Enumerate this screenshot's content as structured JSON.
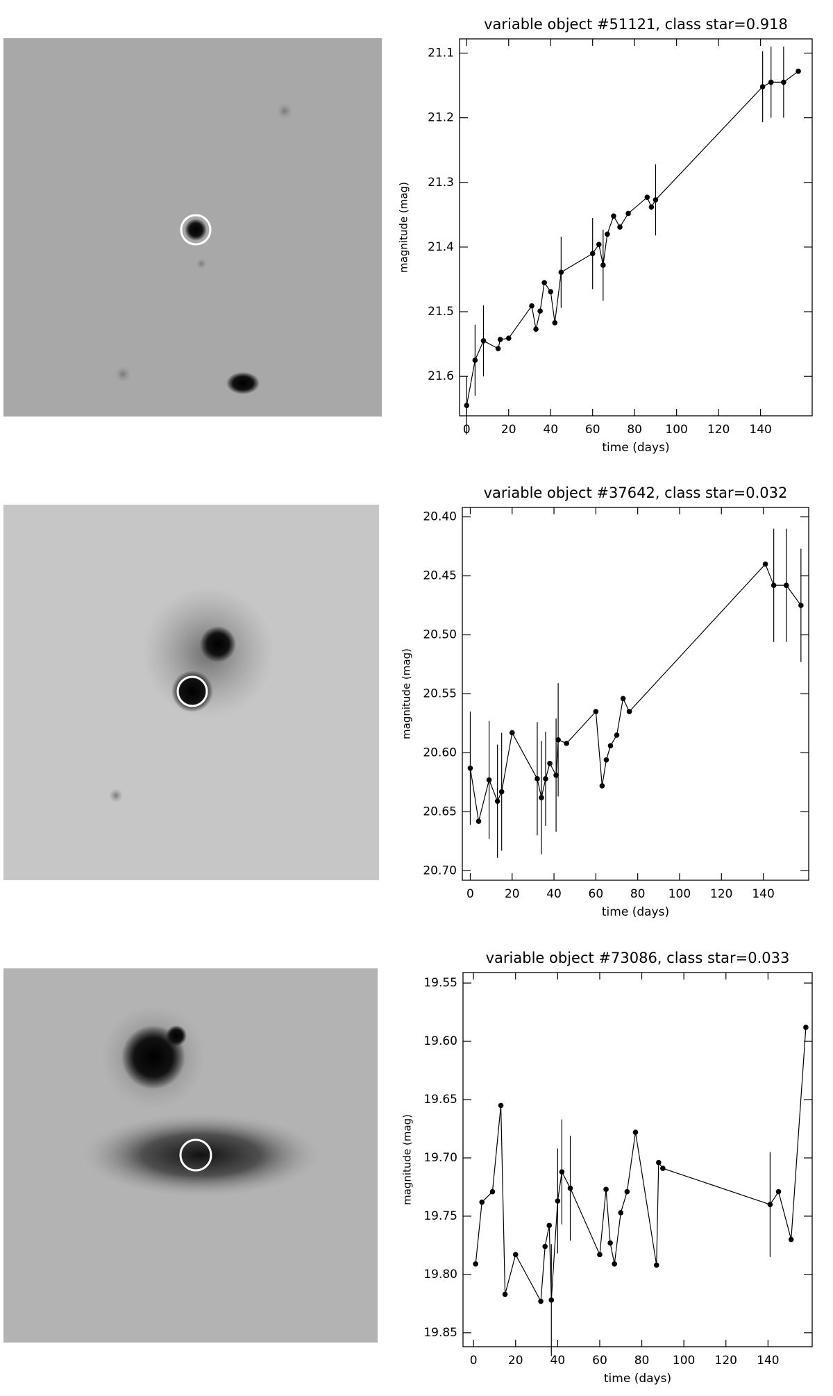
{
  "chart_data": [
    {
      "type": "line",
      "title": "variable object #51121, class star=0.918",
      "x_label": "time (days)",
      "y_label": "magnitude (mag)",
      "color": "#000000",
      "xlim": [
        -3.4,
        164.6
      ],
      "ylim": [
        21.661,
        21.078
      ],
      "xticks": [
        0,
        20,
        40,
        60,
        80,
        100,
        120,
        140
      ],
      "yticks": [
        21.1,
        21.2,
        21.3,
        21.4,
        21.5,
        21.6
      ],
      "x": [
        0,
        4,
        8,
        15,
        16,
        20,
        31,
        33,
        35,
        37,
        40,
        42,
        45,
        60,
        63,
        65,
        67,
        70,
        73,
        77,
        86,
        88,
        90,
        141,
        145,
        151,
        158
      ],
      "values": [
        21.645,
        21.575,
        21.545,
        21.557,
        21.543,
        21.541,
        21.491,
        21.527,
        21.499,
        21.455,
        21.469,
        21.517,
        21.439,
        21.41,
        21.396,
        21.428,
        21.38,
        21.352,
        21.369,
        21.348,
        21.323,
        21.338,
        21.327,
        21.152,
        21.145,
        21.145,
        21.128
      ],
      "errors": [
        0.045,
        0.055,
        0.055,
        null,
        null,
        null,
        null,
        null,
        null,
        null,
        null,
        null,
        0.055,
        0.055,
        null,
        0.055,
        null,
        null,
        null,
        null,
        null,
        null,
        0.055,
        0.055,
        0.055,
        0.055,
        null
      ]
    },
    {
      "type": "line",
      "title": "variable object #37642, class star=0.032",
      "x_label": "time (days)",
      "y_label": "magnitude (mag)",
      "color": "#000000",
      "xlim": [
        -3.8,
        161.7
      ],
      "ylim": [
        20.708,
        20.392
      ],
      "xticks": [
        0,
        20,
        40,
        60,
        80,
        100,
        120,
        140
      ],
      "yticks": [
        {
          "value": 20.4,
          "label": "20.40"
        },
        20.45,
        {
          "value": 20.5,
          "label": "20.50"
        },
        20.55,
        {
          "value": 20.6,
          "label": "20.60"
        },
        20.65,
        {
          "value": 20.7,
          "label": "20.70"
        }
      ],
      "x": [
        0,
        4,
        9,
        13,
        15,
        20,
        32,
        34,
        36,
        38,
        41,
        42,
        46,
        60,
        63,
        65,
        67,
        70,
        73,
        76,
        141,
        145,
        151,
        158
      ],
      "values": [
        20.613,
        20.658,
        20.623,
        20.641,
        20.633,
        20.583,
        20.622,
        20.638,
        20.622,
        20.609,
        20.619,
        20.589,
        20.592,
        20.565,
        20.628,
        20.606,
        20.594,
        20.585,
        20.554,
        20.565,
        20.44,
        20.458,
        20.458,
        20.475
      ],
      "errors": [
        0.048,
        null,
        0.05,
        0.048,
        0.05,
        null,
        0.048,
        0.048,
        0.04,
        null,
        0.048,
        0.048,
        null,
        null,
        null,
        null,
        null,
        null,
        null,
        null,
        null,
        0.048,
        0.048,
        0.048
      ]
    },
    {
      "type": "line",
      "title": "variable object #73086, class star=0.033",
      "x_label": "time (days)",
      "y_label": "magnitude (mag)",
      "color": "#000000",
      "xlim": [
        -5,
        161
      ],
      "ylim": [
        19.862,
        19.541
      ],
      "xticks": [
        0,
        20,
        40,
        60,
        80,
        100,
        120,
        140
      ],
      "yticks": [
        19.55,
        {
          "value": 19.6,
          "label": "19.60"
        },
        19.65,
        {
          "value": 19.7,
          "label": "19.70"
        },
        19.75,
        {
          "value": 19.8,
          "label": "19.80"
        },
        19.85
      ],
      "x": [
        1,
        4,
        9,
        13,
        15,
        20,
        32,
        34,
        36,
        37,
        40,
        42,
        46,
        60,
        63,
        65,
        67,
        70,
        73,
        77,
        87,
        88,
        90,
        141,
        145,
        151,
        158
      ],
      "values": [
        19.791,
        19.738,
        19.729,
        19.655,
        19.817,
        19.783,
        19.823,
        19.776,
        19.758,
        19.822,
        19.737,
        19.712,
        19.726,
        19.783,
        19.727,
        19.773,
        19.791,
        19.747,
        19.729,
        19.678,
        19.792,
        19.704,
        19.709,
        19.74,
        19.729,
        19.77,
        19.588
      ],
      "errors": [
        null,
        null,
        null,
        null,
        null,
        null,
        null,
        null,
        null,
        0.048,
        0.045,
        0.045,
        0.045,
        null,
        null,
        null,
        null,
        null,
        null,
        null,
        null,
        null,
        null,
        0.045,
        null,
        null,
        null
      ]
    }
  ]
}
